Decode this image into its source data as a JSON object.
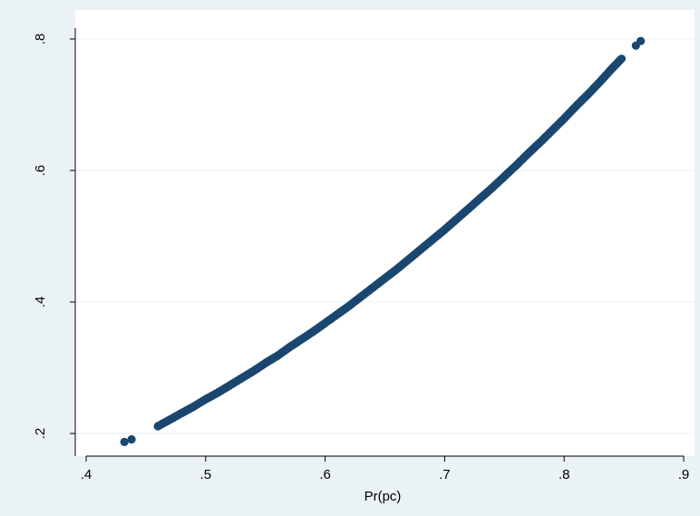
{
  "chart_data": {
    "type": "scatter",
    "title": "",
    "xlabel": "Pr(pc)",
    "ylabel": "",
    "xlim": [
      0.4,
      0.9
    ],
    "ylim": [
      0.2,
      0.8
    ],
    "xticks": [
      0.4,
      0.5,
      0.6,
      0.7,
      0.8,
      0.9
    ],
    "xtick_labels": [
      ".4",
      ".5",
      ".6",
      ".7",
      ".8",
      ".9"
    ],
    "yticks": [
      0.2,
      0.4,
      0.6,
      0.8
    ],
    "ytick_labels": [
      ".2",
      ".4",
      ".6",
      ".8"
    ],
    "grid": "horizontal",
    "legend": "none",
    "colors": {
      "outer_background": "#eaf2f3",
      "plot_background": "#ffffff",
      "marker": "#1a476f",
      "gridline": "#eaf2f3"
    },
    "series": [
      {
        "points": [
          [
            0.432,
            0.187
          ],
          [
            0.438,
            0.191
          ],
          [
            0.46,
            0.211
          ],
          [
            0.47,
            0.221
          ],
          [
            0.48,
            0.231
          ],
          [
            0.49,
            0.241
          ],
          [
            0.5,
            0.252
          ],
          [
            0.51,
            0.262
          ],
          [
            0.52,
            0.273
          ],
          [
            0.53,
            0.284
          ],
          [
            0.54,
            0.295
          ],
          [
            0.55,
            0.307
          ],
          [
            0.56,
            0.318
          ],
          [
            0.57,
            0.331
          ],
          [
            0.58,
            0.343
          ],
          [
            0.59,
            0.355
          ],
          [
            0.6,
            0.368
          ],
          [
            0.61,
            0.381
          ],
          [
            0.62,
            0.394
          ],
          [
            0.63,
            0.408
          ],
          [
            0.64,
            0.422
          ],
          [
            0.65,
            0.436
          ],
          [
            0.66,
            0.45
          ],
          [
            0.67,
            0.465
          ],
          [
            0.68,
            0.48
          ],
          [
            0.69,
            0.495
          ],
          [
            0.7,
            0.51
          ],
          [
            0.71,
            0.526
          ],
          [
            0.72,
            0.542
          ],
          [
            0.73,
            0.558
          ],
          [
            0.74,
            0.574
          ],
          [
            0.75,
            0.591
          ],
          [
            0.76,
            0.608
          ],
          [
            0.77,
            0.626
          ],
          [
            0.78,
            0.643
          ],
          [
            0.79,
            0.661
          ],
          [
            0.8,
            0.679
          ],
          [
            0.81,
            0.698
          ],
          [
            0.82,
            0.716
          ],
          [
            0.83,
            0.735
          ],
          [
            0.84,
            0.755
          ],
          [
            0.848,
            0.77
          ],
          [
            0.86,
            0.79
          ],
          [
            0.864,
            0.797
          ]
        ]
      }
    ]
  }
}
